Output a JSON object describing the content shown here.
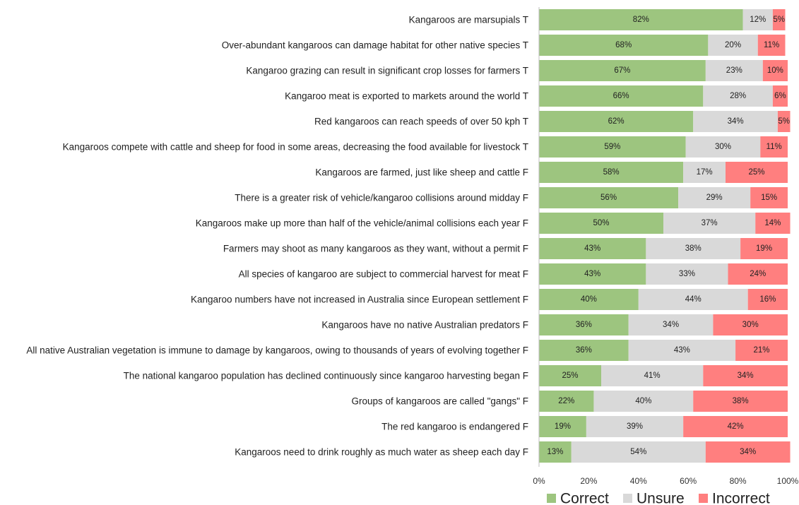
{
  "chart_data": {
    "type": "bar",
    "orientation": "horizontal",
    "stacked": "100%",
    "categories": [
      "Kangaroos are marsupials T",
      "Over-abundant kangaroos can damage habitat for other native species T",
      "Kangaroo grazing can result in significant crop losses for farmers T",
      "Kangaroo meat is exported to markets around the world T",
      "Red kangaroos can reach speeds of over 50 kph T",
      "Kangaroos compete with cattle and sheep for food in some areas, decreasing the food available for livestock T",
      "Kangaroos are farmed, just like sheep and cattle F",
      "There is a greater risk of vehicle/kangaroo collisions around midday F",
      "Kangaroos make up more than half of the vehicle/animal collisions each year F",
      "Farmers may shoot as many kangaroos as they want, without a permit F",
      "All species of kangaroo are subject to commercial harvest for meat F",
      "Kangaroo numbers have not increased in Australia since European settlement F",
      "Kangaroos have no native Australian predators F",
      "All native Australian vegetation is immune to damage by kangaroos, owing to thousands of years of evolving together F",
      "The national kangaroo population has declined continuously since kangaroo harvesting began F",
      "Groups of kangaroos are called \"gangs\" F",
      "The red kangaroo is endangered F",
      "Kangaroos need to drink roughly as much water as sheep each day F"
    ],
    "series": [
      {
        "name": "Correct",
        "color": "#9dc57f",
        "values": [
          82,
          68,
          67,
          66,
          62,
          59,
          58,
          56,
          50,
          43,
          43,
          40,
          36,
          36,
          25,
          22,
          19,
          13
        ]
      },
      {
        "name": "Unsure",
        "color": "#d9d9d9",
        "values": [
          12,
          20,
          23,
          28,
          34,
          30,
          17,
          29,
          37,
          38,
          33,
          44,
          34,
          43,
          41,
          40,
          39,
          54
        ]
      },
      {
        "name": "Incorrect",
        "color": "#ff7f7f",
        "values": [
          5,
          11,
          10,
          6,
          5,
          11,
          25,
          15,
          14,
          19,
          24,
          16,
          30,
          21,
          34,
          38,
          42,
          34
        ]
      }
    ],
    "value_suffix": "%",
    "xlim": [
      0,
      100
    ],
    "xticks": [
      "0%",
      "20%",
      "40%",
      "60%",
      "80%",
      "100%"
    ],
    "legend_position": "bottom-right",
    "grid": false
  }
}
